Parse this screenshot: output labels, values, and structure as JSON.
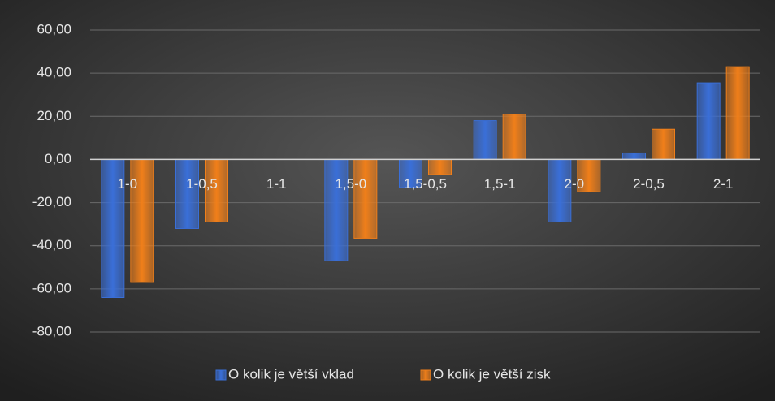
{
  "chart_data": {
    "type": "bar",
    "categories": [
      "1-0",
      "1-0,5",
      "1-1",
      "1,5-0",
      "1,5-0,5",
      "1,5-1",
      "2-0",
      "2-0,5",
      "2-1"
    ],
    "series": [
      {
        "name": "O kolik je větší vklad",
        "color": "#3a6fd8",
        "values": [
          -64,
          -32,
          0,
          -47,
          -13,
          18,
          -29,
          3,
          35.5
        ]
      },
      {
        "name": "O kolik je větší zisk",
        "color": "#f07f1a",
        "values": [
          -57,
          -29,
          0,
          -36.5,
          -7,
          21,
          -15,
          14,
          43
        ]
      }
    ],
    "ylim": [
      -80,
      60
    ],
    "yticks": [
      {
        "value": -80,
        "label": "-80,00"
      },
      {
        "value": -60,
        "label": "-60,00"
      },
      {
        "value": -40,
        "label": "-40,00"
      },
      {
        "value": -20,
        "label": "-20,00"
      },
      {
        "value": 0,
        "label": "0,00"
      },
      {
        "value": 20,
        "label": "20,00"
      },
      {
        "value": 40,
        "label": "40,00"
      },
      {
        "value": 60,
        "label": "60,00"
      }
    ],
    "grid": true,
    "legend": "bottom"
  }
}
